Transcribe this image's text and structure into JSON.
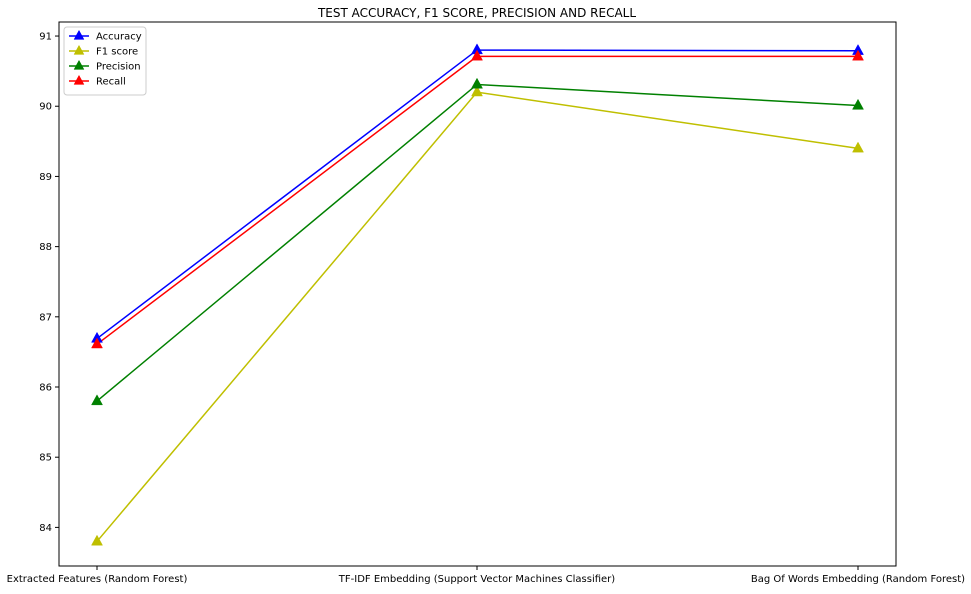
{
  "chart_data": {
    "type": "line",
    "title": "TEST ACCURACY, F1 SCORE, PRECISION AND RECALL",
    "xlabel": "",
    "ylabel": "",
    "categories": [
      "Extracted Features (Random Forest)",
      "TF-IDF Embedding (Support Vector Machines Classifier)",
      "Bag Of Words Embedding (Random Forest)"
    ],
    "ylim": [
      83.45,
      91.2
    ],
    "yticks": [
      84,
      85,
      86,
      87,
      88,
      89,
      90,
      91
    ],
    "grid": false,
    "legend_position": "upper-left",
    "marker": "triangle",
    "series": [
      {
        "name": "Accuracy",
        "color": "#0000ff",
        "values": [
          86.69,
          90.8,
          90.79
        ]
      },
      {
        "name": "F1 score",
        "color": "#bfbf00",
        "values": [
          83.8,
          90.2,
          89.4
        ]
      },
      {
        "name": "Precision",
        "color": "#008000",
        "values": [
          85.8,
          90.31,
          90.01
        ]
      },
      {
        "name": "Recall",
        "color": "#ff0000",
        "values": [
          86.61,
          90.71,
          90.71
        ]
      }
    ]
  }
}
